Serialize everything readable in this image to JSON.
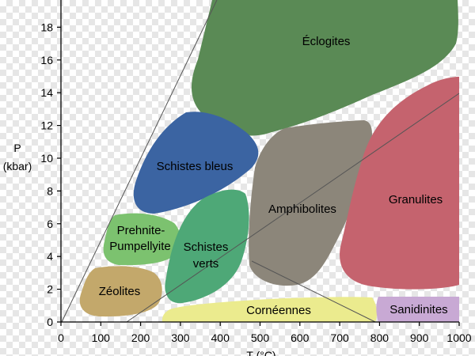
{
  "axes": {
    "y_label_line1": "P",
    "y_label_line2": "(kbar)",
    "x_label": "T (°C)",
    "y_ticks": [
      "0",
      "2",
      "4",
      "6",
      "8",
      "10",
      "12",
      "14",
      "16",
      "18"
    ],
    "x_ticks": [
      "0",
      "100",
      "200",
      "300",
      "400",
      "500",
      "600",
      "700",
      "800",
      "900",
      "1000"
    ],
    "y_range": [
      0,
      19.5
    ],
    "x_range": [
      0,
      1000
    ]
  },
  "facies": {
    "eclogites": "Éclogites",
    "schistes_bleus": "Schistes bleus",
    "amphibolites": "Amphibolites",
    "granulites": "Granulites",
    "prehnite_line1": "Prehnite-",
    "prehnite_line2": "Pumpellyite",
    "schistes_verts_line1": "Schistes",
    "schistes_verts_line2": "verts",
    "zeolites": "Zéolites",
    "corneennes": "Cornéennes",
    "sanidinites": "Sanidinites"
  },
  "colors": {
    "eclogites": "#5a8a55",
    "schistes_bleus": "#3b64a2",
    "amphibolites": "#8c867a",
    "granulites": "#c5636e",
    "prehnite": "#7cc26f",
    "schistes_verts": "#4ea877",
    "zeolites": "#c3a86b",
    "corneennes": "#ebeb8e",
    "sanidinites": "#c8a9d4"
  }
}
